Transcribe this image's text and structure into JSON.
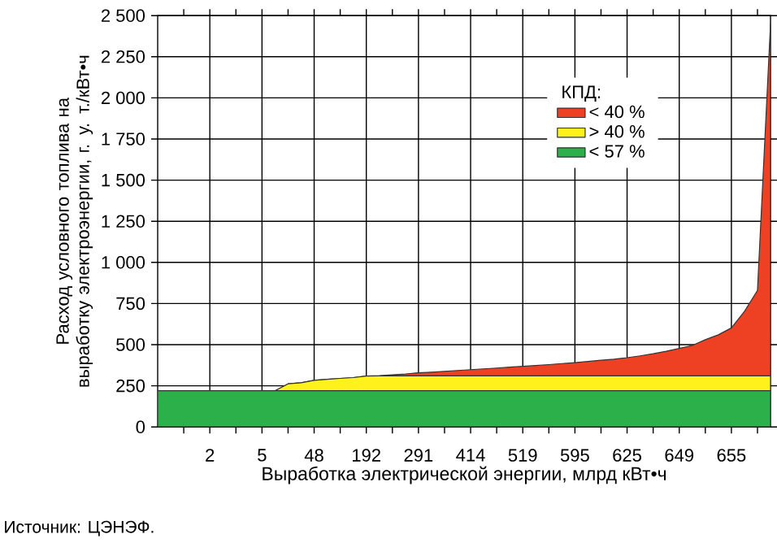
{
  "chart_data": {
    "type": "area",
    "stacked": true,
    "categories": [
      null,
      null,
      null,
      null,
      "2",
      null,
      null,
      null,
      "5",
      null,
      null,
      null,
      "48",
      null,
      null,
      null,
      "192",
      null,
      null,
      null,
      "291",
      null,
      null,
      null,
      "414",
      null,
      null,
      null,
      "519",
      null,
      null,
      null,
      "595",
      null,
      null,
      null,
      "625",
      null,
      null,
      null,
      "649",
      null,
      null,
      null,
      "655",
      null,
      null,
      null
    ],
    "series": [
      {
        "name": "< 57 %",
        "color": "#2bb04a",
        "values": [
          220,
          220,
          220,
          220,
          220,
          220,
          220,
          220,
          220,
          220,
          220,
          220,
          220,
          220,
          220,
          220,
          220,
          220,
          220,
          220,
          220,
          220,
          220,
          220,
          220,
          220,
          220,
          220,
          220,
          220,
          220,
          220,
          220,
          220,
          220,
          220,
          220,
          220,
          220,
          220,
          220,
          220,
          220,
          220,
          220,
          220,
          220,
          220
        ]
      },
      {
        "name": "> 40 %",
        "color": "#fff21c",
        "values": [
          0,
          0,
          0,
          0,
          0,
          0,
          0,
          0,
          0,
          0,
          42,
          48,
          63,
          69,
          75,
          80,
          89,
          90,
          90,
          90,
          90,
          90,
          90,
          90,
          90,
          90,
          90,
          90,
          90,
          90,
          90,
          90,
          90,
          90,
          90,
          90,
          90,
          90,
          90,
          90,
          90,
          90,
          90,
          90,
          90,
          90,
          90,
          90
        ]
      },
      {
        "name": "< 40 %",
        "color": "#ee4023",
        "values": [
          0,
          0,
          0,
          0,
          0,
          0,
          0,
          0,
          0,
          0,
          0,
          0,
          0,
          0,
          0,
          0,
          0,
          2,
          7,
          12,
          19,
          23,
          28,
          33,
          38,
          43,
          48,
          53,
          58,
          63,
          69,
          75,
          81,
          88,
          95,
          102,
          111,
          122,
          135,
          150,
          167,
          185,
          220,
          250,
          292,
          392,
          520,
          2140
        ]
      }
    ],
    "ylim": [
      0,
      2500
    ],
    "yticks": [
      0,
      250,
      500,
      750,
      {
        "value": 1000,
        "label": "1 000"
      },
      {
        "value": 1250,
        "label": "1 250"
      },
      {
        "value": 1500,
        "label": "1 500"
      },
      {
        "value": 1750,
        "label": "1 750"
      },
      {
        "value": 2000,
        "label": "2 000"
      },
      {
        "value": 2250,
        "label": "2 250"
      },
      {
        "value": 2500,
        "label": "2 500"
      }
    ],
    "xlabel": "Выработка электрической энергии, млрд кВт•ч",
    "ylabel": "Расход условного топлива на выработку электроэнергии, г. у. т./кВт•ч",
    "legend_title": "КПД:",
    "legend": "top right",
    "grid": true,
    "annotations": [
      "Источник: ЦЭНЭФ."
    ]
  }
}
